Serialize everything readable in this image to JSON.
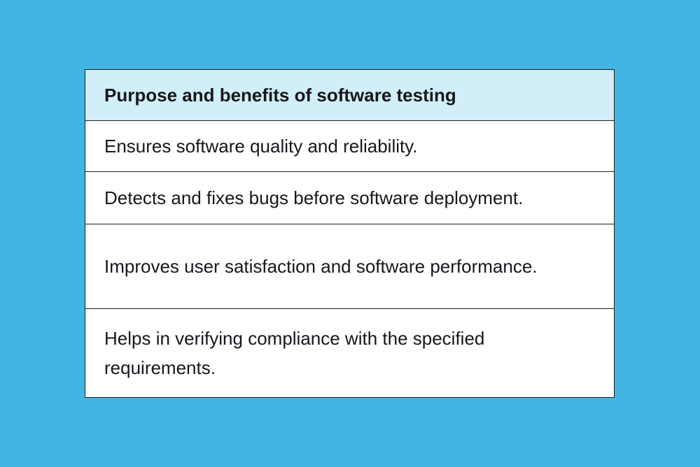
{
  "table": {
    "header": "Purpose and benefits of software testing",
    "rows": [
      "Ensures software quality and reliability.",
      "Detects and fixes bugs before software deployment.",
      "Improves user satisfaction and software performance.",
      "Helps in verifying compliance with the specified requirements."
    ]
  },
  "colors": {
    "background": "#42b5e3",
    "header_fill": "#d2eef9",
    "border": "#1c1f24"
  }
}
